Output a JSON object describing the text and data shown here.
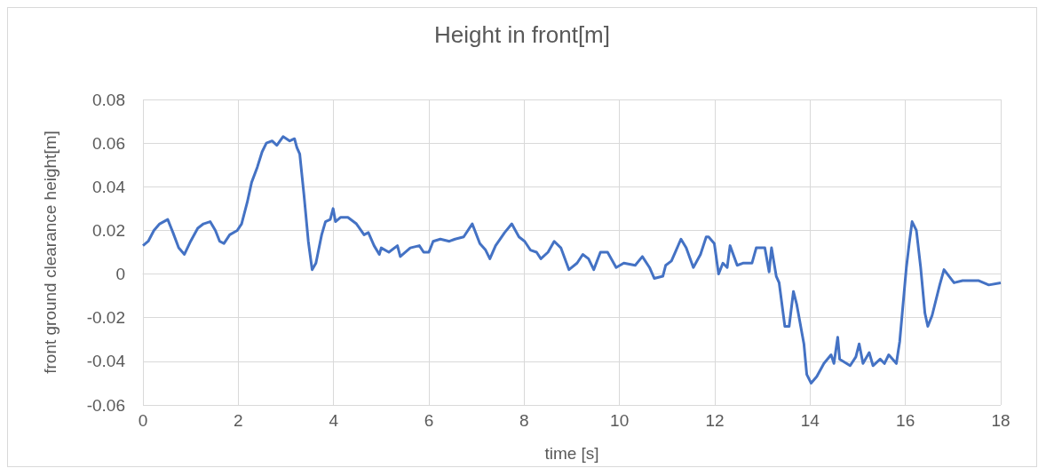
{
  "chart_data": {
    "type": "line",
    "title": "Height in front[m]",
    "xlabel": "time [s]",
    "ylabel": "front ground clearance height[m]",
    "xlim": [
      0,
      18
    ],
    "xticks": [
      0,
      2,
      4,
      6,
      8,
      10,
      12,
      14,
      16,
      18
    ],
    "ylim": [
      -0.06,
      0.08
    ],
    "yticks": [
      -0.06,
      -0.04,
      -0.02,
      0,
      0.02,
      0.04,
      0.06,
      0.08
    ],
    "grid": true,
    "marker": "none",
    "line_style": "solid",
    "series": [
      {
        "color": "#4472c4",
        "x": [
          0,
          0.11,
          0.23,
          0.35,
          0.52,
          0.63,
          0.75,
          0.87,
          1.0,
          1.15,
          1.27,
          1.41,
          1.52,
          1.61,
          1.7,
          1.82,
          1.98,
          2.07,
          2.19,
          2.28,
          2.4,
          2.5,
          2.59,
          2.71,
          2.81,
          2.94,
          3.08,
          3.18,
          3.23,
          3.29,
          3.38,
          3.47,
          3.55,
          3.63,
          3.75,
          3.83,
          3.93,
          3.99,
          4.04,
          4.15,
          4.3,
          4.48,
          4.64,
          4.73,
          4.85,
          4.96,
          5.0,
          5.16,
          5.34,
          5.4,
          5.61,
          5.8,
          5.89,
          6.0,
          6.09,
          6.24,
          6.43,
          6.55,
          6.73,
          6.91,
          7.07,
          7.19,
          7.28,
          7.4,
          7.59,
          7.74,
          7.89,
          8.01,
          8.13,
          8.26,
          8.35,
          8.5,
          8.63,
          8.77,
          8.94,
          9.11,
          9.23,
          9.35,
          9.46,
          9.6,
          9.75,
          9.93,
          10.09,
          10.33,
          10.48,
          10.63,
          10.73,
          10.91,
          10.97,
          11.09,
          11.29,
          11.4,
          11.55,
          11.7,
          11.82,
          11.87,
          11.99,
          12.08,
          12.17,
          12.26,
          12.32,
          12.47,
          12.59,
          12.78,
          12.87,
          13.05,
          13.14,
          13.19,
          13.29,
          13.35,
          13.47,
          13.56,
          13.65,
          13.72,
          13.87,
          13.93,
          14.02,
          14.14,
          14.29,
          14.44,
          14.5,
          14.58,
          14.62,
          14.84,
          14.96,
          15.03,
          15.11,
          15.24,
          15.32,
          15.47,
          15.56,
          15.65,
          15.81,
          15.88,
          16.02,
          16.08,
          16.14,
          16.23,
          16.32,
          16.41,
          16.47,
          16.56,
          16.72,
          16.81,
          17.02,
          17.2,
          17.53,
          17.75,
          18.0
        ],
        "values": [
          0.013,
          0.015,
          0.02,
          0.023,
          0.025,
          0.019,
          0.012,
          0.009,
          0.015,
          0.021,
          0.023,
          0.024,
          0.02,
          0.015,
          0.014,
          0.018,
          0.02,
          0.023,
          0.033,
          0.042,
          0.049,
          0.056,
          0.06,
          0.061,
          0.059,
          0.063,
          0.061,
          0.062,
          0.058,
          0.055,
          0.036,
          0.015,
          0.002,
          0.005,
          0.018,
          0.024,
          0.025,
          0.03,
          0.024,
          0.026,
          0.026,
          0.023,
          0.018,
          0.019,
          0.013,
          0.009,
          0.012,
          0.01,
          0.013,
          0.008,
          0.012,
          0.013,
          0.01,
          0.01,
          0.015,
          0.016,
          0.015,
          0.016,
          0.017,
          0.023,
          0.014,
          0.011,
          0.007,
          0.013,
          0.019,
          0.023,
          0.017,
          0.015,
          0.011,
          0.01,
          0.007,
          0.01,
          0.015,
          0.012,
          0.002,
          0.005,
          0.009,
          0.007,
          0.002,
          0.01,
          0.01,
          0.003,
          0.005,
          0.004,
          0.008,
          0.003,
          -0.002,
          -0.001,
          0.004,
          0.006,
          0.016,
          0.012,
          0.003,
          0.009,
          0.017,
          0.017,
          0.014,
          0.0,
          0.005,
          0.003,
          0.013,
          0.004,
          0.005,
          0.005,
          0.012,
          0.012,
          0.001,
          0.012,
          -0.001,
          -0.004,
          -0.024,
          -0.024,
          -0.008,
          -0.014,
          -0.032,
          -0.046,
          -0.05,
          -0.047,
          -0.041,
          -0.037,
          -0.041,
          -0.029,
          -0.039,
          -0.042,
          -0.038,
          -0.032,
          -0.041,
          -0.036,
          -0.042,
          -0.039,
          -0.041,
          -0.037,
          -0.041,
          -0.031,
          0.003,
          0.014,
          0.024,
          0.02,
          0.003,
          -0.018,
          -0.024,
          -0.019,
          -0.005,
          0.002,
          -0.004,
          -0.003,
          -0.003,
          -0.005,
          -0.004
        ]
      }
    ]
  }
}
